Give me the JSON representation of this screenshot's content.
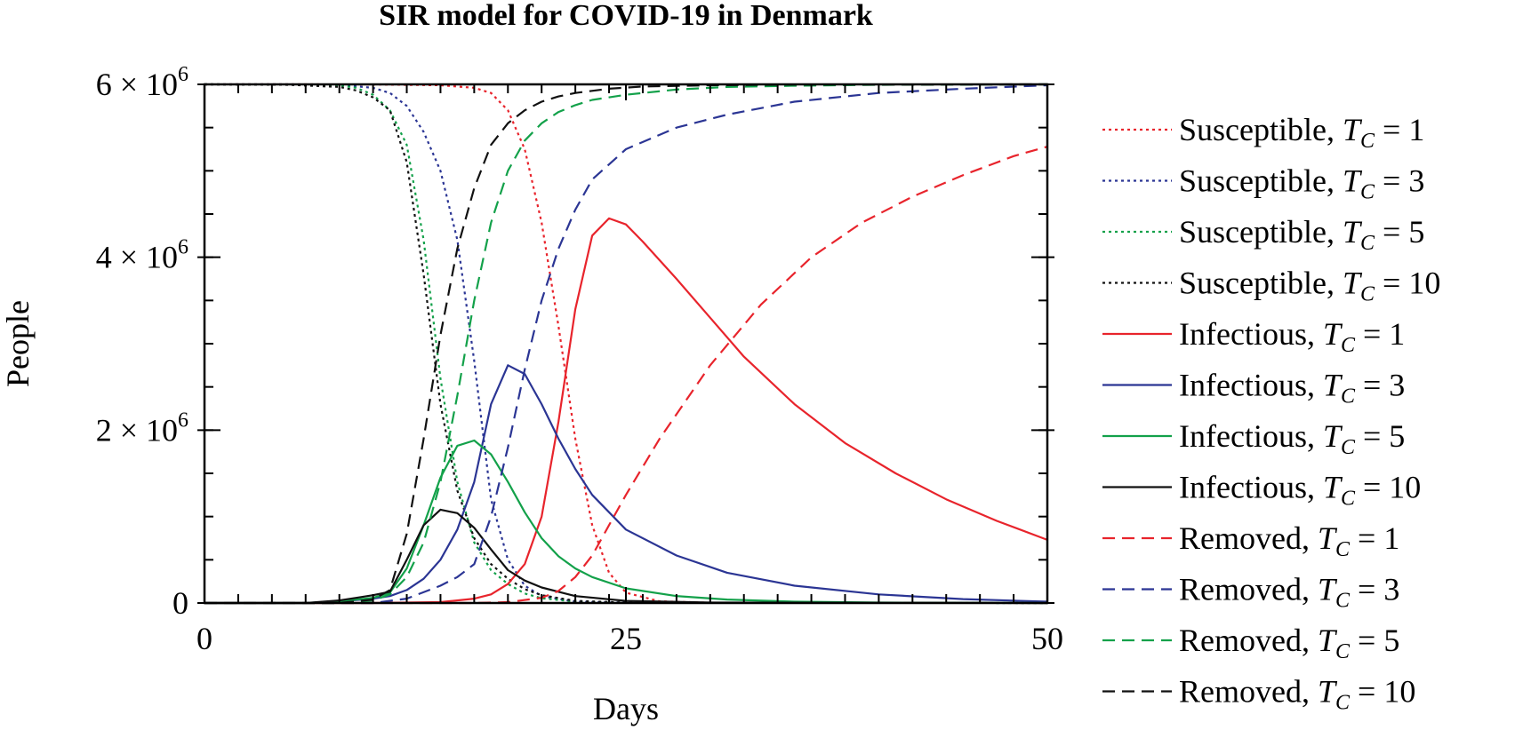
{
  "chart_data": {
    "type": "line",
    "title": "SIR model for COVID-19 in Denmark",
    "xlabel": "Days",
    "ylabel": "People",
    "xlim": [
      0,
      50
    ],
    "ylim": [
      0,
      6000000
    ],
    "x_ticks": [
      0,
      25,
      50
    ],
    "x_tick_labels": [
      "0",
      "25",
      "50"
    ],
    "y_ticks": [
      0,
      2000000,
      4000000,
      6000000
    ],
    "y_tick_labels": [
      {
        "mantissa": "0",
        "exponent": ""
      },
      {
        "mantissa": "2 × 10",
        "exponent": "6"
      },
      {
        "mantissa": "4 × 10",
        "exponent": "6"
      },
      {
        "mantissa": "6 × 10",
        "exponent": "6"
      }
    ],
    "grid": false,
    "legend_position": "right",
    "series": [
      {
        "name": "Susceptible, T_C = 1",
        "legend_label": "Susceptible, ",
        "tc": "1",
        "color": "#e8242c",
        "style": "dotted",
        "x": [
          0,
          5,
          10,
          14,
          16,
          17,
          18,
          19,
          20,
          21,
          22,
          23,
          24,
          25,
          27,
          30,
          50
        ],
        "y": [
          6000000,
          6000000,
          5999000,
          5990000,
          5960000,
          5900000,
          5700000,
          5250000,
          4400000,
          3200000,
          1900000,
          900000,
          350000,
          120000,
          20000,
          3000,
          0
        ]
      },
      {
        "name": "Susceptible, T_C = 3",
        "legend_label": "Susceptible, ",
        "tc": "3",
        "color": "#2b3594",
        "style": "dotted",
        "x": [
          0,
          5,
          8,
          10,
          11,
          12,
          13,
          14,
          15,
          16,
          17,
          18,
          19,
          20,
          22,
          25,
          50
        ],
        "y": [
          6000000,
          6000000,
          5995000,
          5960000,
          5900000,
          5750000,
          5450000,
          5000000,
          4200000,
          2800000,
          1200000,
          500000,
          200000,
          80000,
          15000,
          3000,
          0
        ]
      },
      {
        "name": "Susceptible, T_C = 5",
        "legend_label": "Susceptible, ",
        "tc": "5",
        "color": "#13a14a",
        "style": "dotted",
        "x": [
          0,
          5,
          8,
          9,
          10,
          11,
          12,
          13,
          14,
          15,
          16,
          17,
          18,
          19,
          20,
          22,
          25,
          50
        ],
        "y": [
          6000000,
          5998000,
          5990000,
          5960000,
          5880000,
          5700000,
          5300000,
          4200000,
          2600000,
          1400000,
          700000,
          380000,
          220000,
          110000,
          55000,
          15000,
          3000,
          0
        ]
      },
      {
        "name": "Susceptible, T_C = 10",
        "legend_label": "Susceptible, ",
        "tc": "10",
        "color": "#111111",
        "style": "dotted",
        "x": [
          0,
          5,
          8,
          9,
          10,
          11,
          12,
          13,
          14,
          15,
          16,
          17,
          18,
          19,
          20,
          22,
          25,
          50
        ],
        "y": [
          6000000,
          5995000,
          5970000,
          5930000,
          5850000,
          5700000,
          5100000,
          3800000,
          2300000,
          1300000,
          750000,
          450000,
          280000,
          160000,
          90000,
          25000,
          5000,
          0
        ]
      },
      {
        "name": "Infectious, T_C = 1",
        "legend_label": "Infectious, ",
        "tc": "1",
        "color": "#e8242c",
        "style": "solid",
        "x": [
          0,
          10,
          14,
          16,
          17,
          18,
          19,
          20,
          21,
          22,
          23,
          24,
          25,
          26,
          28,
          30,
          32,
          35,
          38,
          41,
          44,
          47,
          50
        ],
        "y": [
          0,
          0,
          10000,
          50000,
          100000,
          220000,
          450000,
          1000000,
          2100000,
          3400000,
          4250000,
          4450000,
          4380000,
          4180000,
          3750000,
          3300000,
          2850000,
          2300000,
          1850000,
          1500000,
          1200000,
          950000,
          730000
        ]
      },
      {
        "name": "Infectious, T_C = 3",
        "legend_label": "Infectious, ",
        "tc": "3",
        "color": "#2b3594",
        "style": "solid",
        "x": [
          0,
          6,
          8,
          10,
          11,
          12,
          13,
          14,
          15,
          16,
          17,
          18,
          19,
          20,
          21,
          22,
          23,
          25,
          28,
          31,
          35,
          40,
          45,
          50
        ],
        "y": [
          0,
          0,
          20000,
          50000,
          80000,
          150000,
          280000,
          500000,
          850000,
          1400000,
          2300000,
          2750000,
          2650000,
          2300000,
          1900000,
          1550000,
          1250000,
          850000,
          550000,
          350000,
          200000,
          100000,
          45000,
          15000
        ]
      },
      {
        "name": "Infectious, T_C = 5",
        "legend_label": "Infectious, ",
        "tc": "5",
        "color": "#13a14a",
        "style": "solid",
        "x": [
          0,
          6,
          8,
          10,
          11,
          12,
          13,
          14,
          15,
          16,
          17,
          18,
          19,
          20,
          21,
          22,
          23,
          25,
          28,
          31,
          35,
          40,
          50
        ],
        "y": [
          0,
          0,
          20000,
          60000,
          120000,
          400000,
          900000,
          1450000,
          1820000,
          1880000,
          1720000,
          1400000,
          1050000,
          750000,
          540000,
          400000,
          300000,
          170000,
          80000,
          40000,
          15000,
          5000,
          0
        ]
      },
      {
        "name": "Infectious, T_C = 10",
        "legend_label": "Infectious, ",
        "tc": "10",
        "color": "#111111",
        "style": "solid",
        "x": [
          0,
          6,
          8,
          9,
          10,
          11,
          12,
          13,
          14,
          15,
          16,
          17,
          18,
          19,
          20,
          22,
          25,
          30,
          50
        ],
        "y": [
          0,
          0,
          30000,
          60000,
          90000,
          130000,
          500000,
          900000,
          1080000,
          1040000,
          870000,
          620000,
          380000,
          260000,
          180000,
          80000,
          25000,
          5000,
          0
        ]
      },
      {
        "name": "Removed, T_C = 1",
        "legend_label": "Removed, ",
        "tc": "1",
        "color": "#e8242c",
        "style": "dashed",
        "x": [
          0,
          16,
          18,
          20,
          21,
          22,
          23,
          24,
          25,
          27,
          30,
          33,
          36,
          39,
          42,
          45,
          48,
          50
        ],
        "y": [
          0,
          0,
          10000,
          60000,
          140000,
          300000,
          550000,
          900000,
          1250000,
          1900000,
          2750000,
          3450000,
          4000000,
          4400000,
          4700000,
          4950000,
          5170000,
          5280000
        ]
      },
      {
        "name": "Removed, T_C = 3",
        "legend_label": "Removed, ",
        "tc": "3",
        "color": "#2b3594",
        "style": "dashed",
        "x": [
          0,
          10,
          12,
          14,
          15,
          16,
          17,
          18,
          19,
          20,
          21,
          22,
          23,
          25,
          28,
          31,
          35,
          40,
          45,
          50
        ],
        "y": [
          0,
          0,
          50000,
          200000,
          300000,
          450000,
          1000000,
          1800000,
          2700000,
          3500000,
          4100000,
          4550000,
          4900000,
          5250000,
          5500000,
          5650000,
          5800000,
          5900000,
          5950000,
          5990000
        ]
      },
      {
        "name": "Removed, T_C = 5",
        "legend_label": "Removed, ",
        "tc": "5",
        "color": "#13a14a",
        "style": "dashed",
        "x": [
          0,
          8,
          10,
          11,
          12,
          13,
          14,
          15,
          16,
          17,
          18,
          19,
          20,
          21,
          22,
          23,
          25,
          28,
          31,
          35,
          40,
          50
        ],
        "y": [
          0,
          0,
          30000,
          100000,
          300000,
          700000,
          1400000,
          2400000,
          3500000,
          4400000,
          5000000,
          5350000,
          5550000,
          5680000,
          5760000,
          5820000,
          5880000,
          5940000,
          5970000,
          5985000,
          5995000,
          6000000
        ]
      },
      {
        "name": "Removed, T_C = 10",
        "legend_label": "Removed, ",
        "tc": "10",
        "color": "#111111",
        "style": "dashed",
        "x": [
          0,
          8,
          10,
          11,
          12,
          13,
          14,
          15,
          16,
          17,
          18,
          19,
          20,
          21,
          22,
          24,
          26,
          30,
          35,
          50
        ],
        "y": [
          0,
          0,
          40000,
          150000,
          800000,
          1900000,
          3100000,
          4100000,
          4800000,
          5300000,
          5550000,
          5700000,
          5800000,
          5860000,
          5900000,
          5950000,
          5975000,
          5990000,
          5998000,
          6000000
        ]
      }
    ]
  }
}
